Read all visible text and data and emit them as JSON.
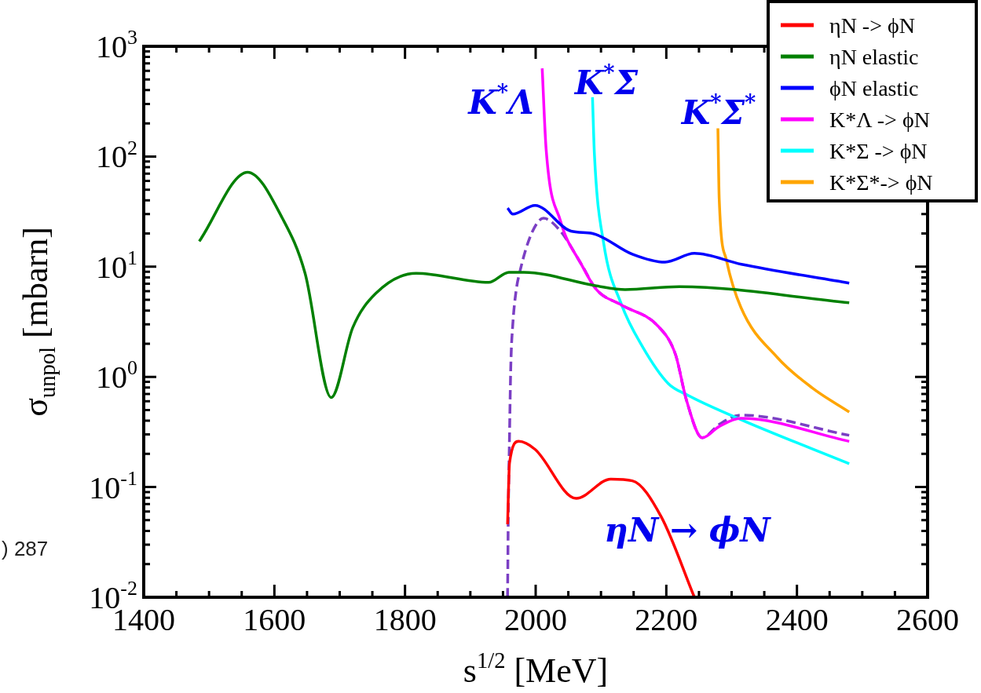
{
  "chart_data": {
    "type": "line",
    "xlabel": "s$^{1/2}$ [MeV]",
    "ylabel": "σ$_{unpol}$ [mbarn]",
    "log": "y",
    "grid": false,
    "legend": "top right",
    "line_style": "solid",
    "marker": "none",
    "xlim": [
      1400,
      2600
    ],
    "xticks": [
      1400,
      1600,
      1800,
      2000,
      2200,
      2400,
      2600
    ],
    "ylim": [
      0.01,
      1000
    ],
    "yticks": [
      {
        "value": 0.01,
        "label": "10$^{-2}$"
      },
      {
        "value": 0.1,
        "label": "10$^{-1}$"
      },
      {
        "value": 1,
        "label": "10$^{0}$"
      },
      {
        "value": 10,
        "label": "10$^{1}$"
      },
      {
        "value": 100,
        "label": "10$^{2}$"
      },
      {
        "value": 1000,
        "label": "10$^{3}$"
      }
    ],
    "series": [
      {
        "name": "ηN -> ϕN",
        "color": "#ff0000",
        "x": [
          1957,
          1960,
          1974,
          1999,
          2062,
          2115,
          2148,
          2192,
          2243
        ],
        "values": [
          0.046,
          0.166,
          0.26,
          0.22,
          0.079,
          0.118,
          0.114,
          0.054,
          0.01
        ]
      },
      {
        "name": "ηN elastic",
        "color": "#008000",
        "x": [
          1485,
          1559,
          1613,
          1647,
          1687,
          1720,
          1755,
          1817,
          1928,
          1959,
          1982,
          2093,
          2137,
          2220,
          2480
        ],
        "values": [
          17,
          72,
          27,
          8.7,
          0.65,
          2.8,
          5.7,
          8.7,
          7.2,
          8.9,
          8.9,
          6.7,
          6.2,
          6.6,
          4.7
        ]
      },
      {
        "name": "ϕN elastic",
        "color": "#0000ff",
        "x": [
          1957,
          1965,
          1999,
          2054,
          2087,
          2148,
          2198,
          2243,
          2315,
          2480
        ],
        "values": [
          34,
          30,
          36,
          21,
          20,
          13,
          11,
          13.2,
          10.5,
          7.1
        ]
      },
      {
        "name": "K*Λ -> ϕN",
        "color": "#ff00ff",
        "x": [
          2010,
          2016,
          2038,
          2070,
          2093,
          2131,
          2187,
          2214,
          2231,
          2255,
          2281,
          2314,
          2480
        ],
        "values": [
          630,
          117,
          26,
          10.5,
          6.2,
          4.5,
          2.9,
          1.6,
          0.61,
          0.28,
          0.355,
          0.42,
          0.26
        ]
      },
      {
        "name": "K*Σ -> ϕN",
        "color": "#00ffff",
        "x": [
          2087,
          2090,
          2104,
          2131,
          2164,
          2203,
          2231,
          2314,
          2480
        ],
        "values": [
          345,
          103,
          16.5,
          4.6,
          1.86,
          0.87,
          0.69,
          0.41,
          0.163
        ]
      },
      {
        "name": "K*Σ*-> ϕN",
        "color": "#ffa500",
        "x": [
          2279,
          2281,
          2292,
          2314,
          2370,
          2424,
          2480
        ],
        "values": [
          180,
          41,
          11.5,
          4.3,
          1.5,
          0.79,
          0.48
        ]
      },
      {
        "color": "#7b3fc4",
        "line_style": "dashed",
        "x": [
          1957,
          1958,
          1960,
          1962,
          1965,
          1970,
          1976,
          1993,
          2012,
          2038,
          2070,
          2093,
          2131,
          2187,
          2214,
          2231,
          2255,
          2281,
          2314,
          2480
        ],
        "values": [
          0.01,
          0.05,
          0.3,
          1.3,
          3,
          6,
          9.1,
          19.6,
          27.5,
          21,
          10.5,
          6.2,
          4.5,
          2.9,
          1.6,
          0.61,
          0.28,
          0.37,
          0.45,
          0.295
        ]
      }
    ],
    "annotations": [
      "K$^{*}$Λ",
      "K$^{*}$Σ",
      "K$^{*}$Σ$^{*}$",
      "ηN → ϕN",
      ") 287"
    ]
  }
}
